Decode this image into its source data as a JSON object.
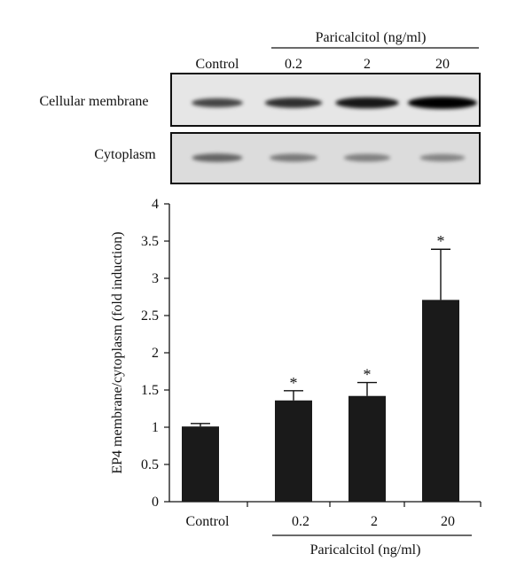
{
  "blot": {
    "treatment_label": "Paricalcitol (ng/ml)",
    "lane_labels": [
      "Control",
      "0.2",
      "2",
      "20"
    ],
    "rows": [
      {
        "label": "Cellular membrane",
        "band_intensity": [
          0.7,
          0.8,
          0.9,
          1.0
        ],
        "band_size": [
          0.85,
          0.95,
          1.05,
          1.15
        ]
      },
      {
        "label": "Cytoplasm",
        "band_intensity": [
          0.55,
          0.45,
          0.42,
          0.4
        ],
        "band_size": [
          0.95,
          0.9,
          0.88,
          0.85
        ]
      }
    ]
  },
  "chart_data": {
    "type": "bar",
    "categories": [
      "Control",
      "0.2",
      "2",
      "20"
    ],
    "values": [
      1.01,
      1.36,
      1.42,
      2.71
    ],
    "errors": [
      0.04,
      0.13,
      0.18,
      0.68
    ],
    "significance": [
      "",
      "*",
      "*",
      "*"
    ],
    "ylabel": "EP4 membrane/cytoplasm (fold induction)",
    "xlabel": "Paricalcitol (ng/ml)",
    "ylim": [
      0,
      4
    ],
    "yticks": [
      "0",
      "0.5",
      "1",
      "1.5",
      "2",
      "2.5",
      "3",
      "3.5",
      "4"
    ],
    "bar_color": "#1a1a1a"
  }
}
